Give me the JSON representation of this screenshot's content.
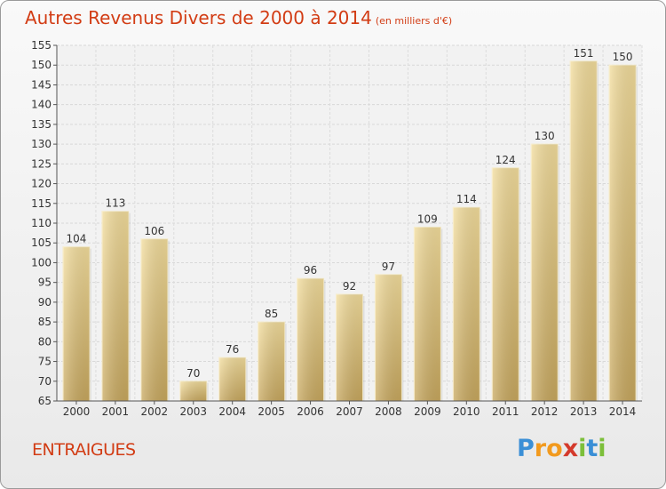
{
  "chart_data": {
    "type": "bar",
    "title": "Autres Revenus Divers de 2000 à 2014",
    "subtitle": "(en milliers d'€)",
    "categories": [
      "2000",
      "2001",
      "2002",
      "2003",
      "2004",
      "2005",
      "2006",
      "2007",
      "2008",
      "2009",
      "2010",
      "2011",
      "2012",
      "2013",
      "2014"
    ],
    "values": [
      104,
      113,
      106,
      70,
      76,
      85,
      96,
      92,
      97,
      109,
      114,
      124,
      130,
      151,
      150
    ],
    "ylim": [
      65,
      155
    ],
    "yticks": [
      65,
      70,
      75,
      80,
      85,
      90,
      95,
      100,
      105,
      110,
      115,
      120,
      125,
      130,
      135,
      140,
      145,
      150,
      155
    ],
    "grid": true,
    "legend": "none",
    "bar_color": "#e6c986"
  },
  "footer": {
    "place": "ENTRAIGUES",
    "logo": {
      "letters": [
        "P",
        "r",
        "o",
        "x",
        "i",
        "t",
        "i"
      ],
      "colors": [
        "#3a8fd6",
        "#f29a1e",
        "#f29a1e",
        "#d43a2c",
        "#7cbf3a",
        "#3a8fd6",
        "#7cbf3a"
      ]
    }
  }
}
